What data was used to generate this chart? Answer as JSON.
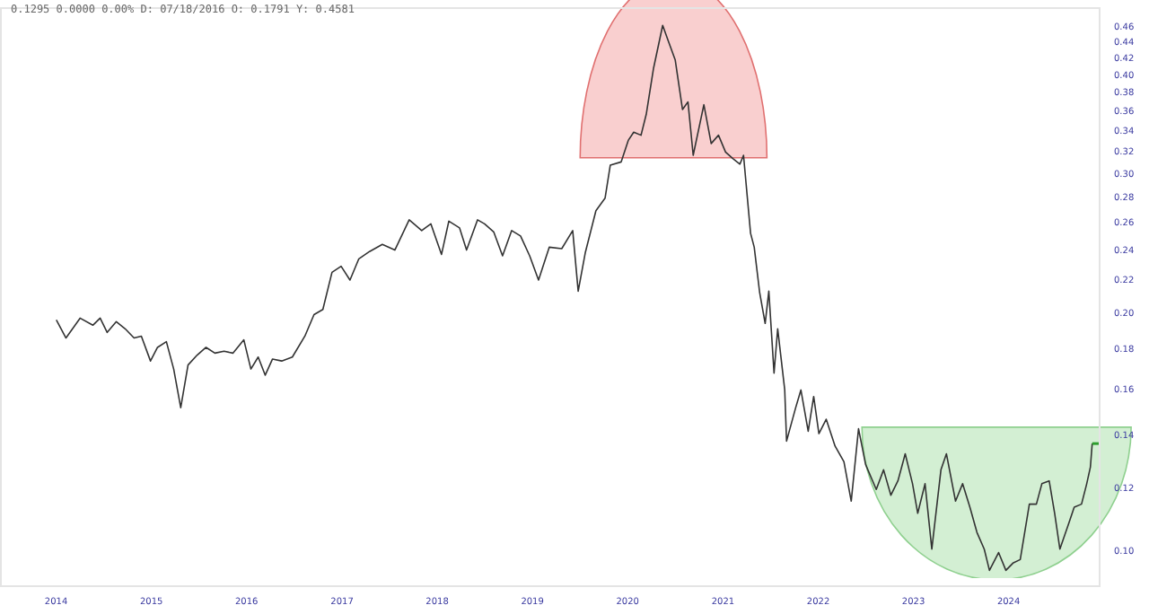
{
  "chart_data": {
    "type": "line",
    "annotations": [
      "0.1295 0.0000 0.00% D: 07/18/2016 O: 0.1791 Y: 0.4581"
    ],
    "log": true,
    "xlim": [
      "2013-06-03",
      "2024-12-15"
    ],
    "xticks": [
      "2014",
      "2015",
      "2016",
      "2017",
      "2018",
      "2019",
      "2020",
      "2021",
      "2022",
      "2023",
      "2024"
    ],
    "ylim": [
      0.09,
      0.485
    ],
    "yticks": [
      {
        "value": 0.1,
        "label": "0.10"
      },
      0.12,
      0.14,
      0.16,
      0.18,
      {
        "value": 0.2,
        "label": "0.20"
      },
      0.22,
      0.24,
      0.26,
      0.28,
      {
        "value": 0.3,
        "label": "0.30"
      },
      0.32,
      0.34,
      0.36,
      0.38,
      {
        "value": 0.4,
        "label": "0.40"
      },
      0.42,
      0.44,
      0.46
    ],
    "series": [
      {
        "color": "#333333",
        "x": [
          "2014-01-05",
          "2014-02-11",
          "2014-04-06",
          "2014-05-25",
          "2014-06-22",
          "2014-07-19",
          "2014-08-23",
          "2014-09-26",
          "2014-10-30",
          "2014-11-27",
          "2015-01-01",
          "2015-01-28",
          "2015-03-03",
          "2015-03-31",
          "2015-04-27",
          "2015-05-25",
          "2015-06-29",
          "2015-08-02",
          "2015-09-05",
          "2015-10-10",
          "2015-11-13",
          "2015-12-25",
          "2016-01-21",
          "2016-02-18",
          "2016-03-16",
          "2016-04-13",
          "2016-05-18",
          "2016-06-28",
          "2016-08-15",
          "2016-09-19",
          "2016-10-23",
          "2016-11-27",
          "2017-01-01",
          "2017-02-04",
          "2017-03-10",
          "2017-04-20",
          "2017-06-08",
          "2017-07-26",
          "2017-09-19",
          "2017-11-06",
          "2017-12-11",
          "2018-01-21",
          "2018-02-18",
          "2018-03-31",
          "2018-04-27",
          "2018-06-08",
          "2018-07-05",
          "2018-08-09",
          "2018-09-12",
          "2018-10-17",
          "2018-11-20",
          "2018-12-25",
          "2019-01-28",
          "2019-03-10",
          "2019-04-27",
          "2019-06-08",
          "2019-06-29",
          "2019-07-26",
          "2019-09-05",
          "2019-10-10",
          "2019-10-30",
          "2019-12-11",
          "2020-01-07",
          "2020-01-28",
          "2020-02-25",
          "2020-03-16",
          "2020-04-13",
          "2020-05-18",
          "2020-06-08",
          "2020-07-05",
          "2020-08-02",
          "2020-08-23",
          "2020-09-12",
          "2020-10-23",
          "2020-11-20",
          "2020-12-18",
          "2021-01-14",
          "2021-02-11",
          "2021-03-10",
          "2021-03-24",
          "2021-04-20",
          "2021-05-04",
          "2021-05-25",
          "2021-06-15",
          "2021-06-29",
          "2021-07-19",
          "2021-08-02",
          "2021-08-29",
          "2021-09-05",
          "2021-10-10",
          "2021-10-30",
          "2021-11-27",
          "2021-12-18",
          "2022-01-07",
          "2022-02-04",
          "2022-03-10",
          "2022-04-13",
          "2022-05-11",
          "2022-06-08",
          "2022-07-05",
          "2022-08-15",
          "2022-09-12",
          "2022-10-10",
          "2022-11-06",
          "2022-12-04",
          "2023-01-01",
          "2023-01-21",
          "2023-02-18",
          "2023-03-16",
          "2023-04-20",
          "2023-05-11",
          "2023-06-15",
          "2023-07-12",
          "2023-08-09",
          "2023-09-05",
          "2023-10-03",
          "2023-10-23",
          "2023-11-27",
          "2023-12-25",
          "2024-01-21",
          "2024-02-18",
          "2024-03-24",
          "2024-04-20",
          "2024-05-11",
          "2024-06-08",
          "2024-06-29",
          "2024-07-19",
          "2024-08-23",
          "2024-09-12",
          "2024-10-10",
          "2024-10-30",
          "2024-11-13",
          "2024-11-20"
        ],
        "values": [
          0.195,
          0.185,
          0.196,
          0.192,
          0.196,
          0.188,
          0.194,
          0.19,
          0.185,
          0.186,
          0.173,
          0.18,
          0.183,
          0.169,
          0.151,
          0.171,
          0.176,
          0.18,
          0.177,
          0.178,
          0.177,
          0.184,
          0.169,
          0.175,
          0.166,
          0.174,
          0.173,
          0.175,
          0.186,
          0.198,
          0.201,
          0.224,
          0.228,
          0.219,
          0.233,
          0.238,
          0.243,
          0.239,
          0.261,
          0.253,
          0.258,
          0.236,
          0.26,
          0.255,
          0.239,
          0.261,
          0.258,
          0.252,
          0.235,
          0.253,
          0.249,
          0.235,
          0.219,
          0.241,
          0.24,
          0.253,
          0.212,
          0.237,
          0.268,
          0.278,
          0.306,
          0.309,
          0.329,
          0.337,
          0.334,
          0.355,
          0.406,
          0.46,
          0.44,
          0.416,
          0.36,
          0.368,
          0.315,
          0.365,
          0.326,
          0.334,
          0.318,
          0.312,
          0.307,
          0.315,
          0.251,
          0.241,
          0.211,
          0.193,
          0.212,
          0.167,
          0.19,
          0.159,
          0.137,
          0.151,
          0.159,
          0.141,
          0.156,
          0.14,
          0.146,
          0.135,
          0.129,
          0.115,
          0.142,
          0.128,
          0.119,
          0.126,
          0.117,
          0.122,
          0.132,
          0.121,
          0.111,
          0.121,
          0.1,
          0.126,
          0.132,
          0.115,
          0.121,
          0.113,
          0.105,
          0.1,
          0.094,
          0.099,
          0.094,
          0.096,
          0.097,
          0.114,
          0.114,
          0.121,
          0.122,
          0.111,
          0.1,
          0.108,
          0.113,
          0.114,
          0.121,
          0.127,
          0.136
        ]
      },
      {
        "type": "line",
        "color": "#2e9e2e",
        "x": [
          "2024-11-20",
          "2024-12-15"
        ],
        "values": [
          0.136,
          0.136
        ]
      }
    ]
  }
}
